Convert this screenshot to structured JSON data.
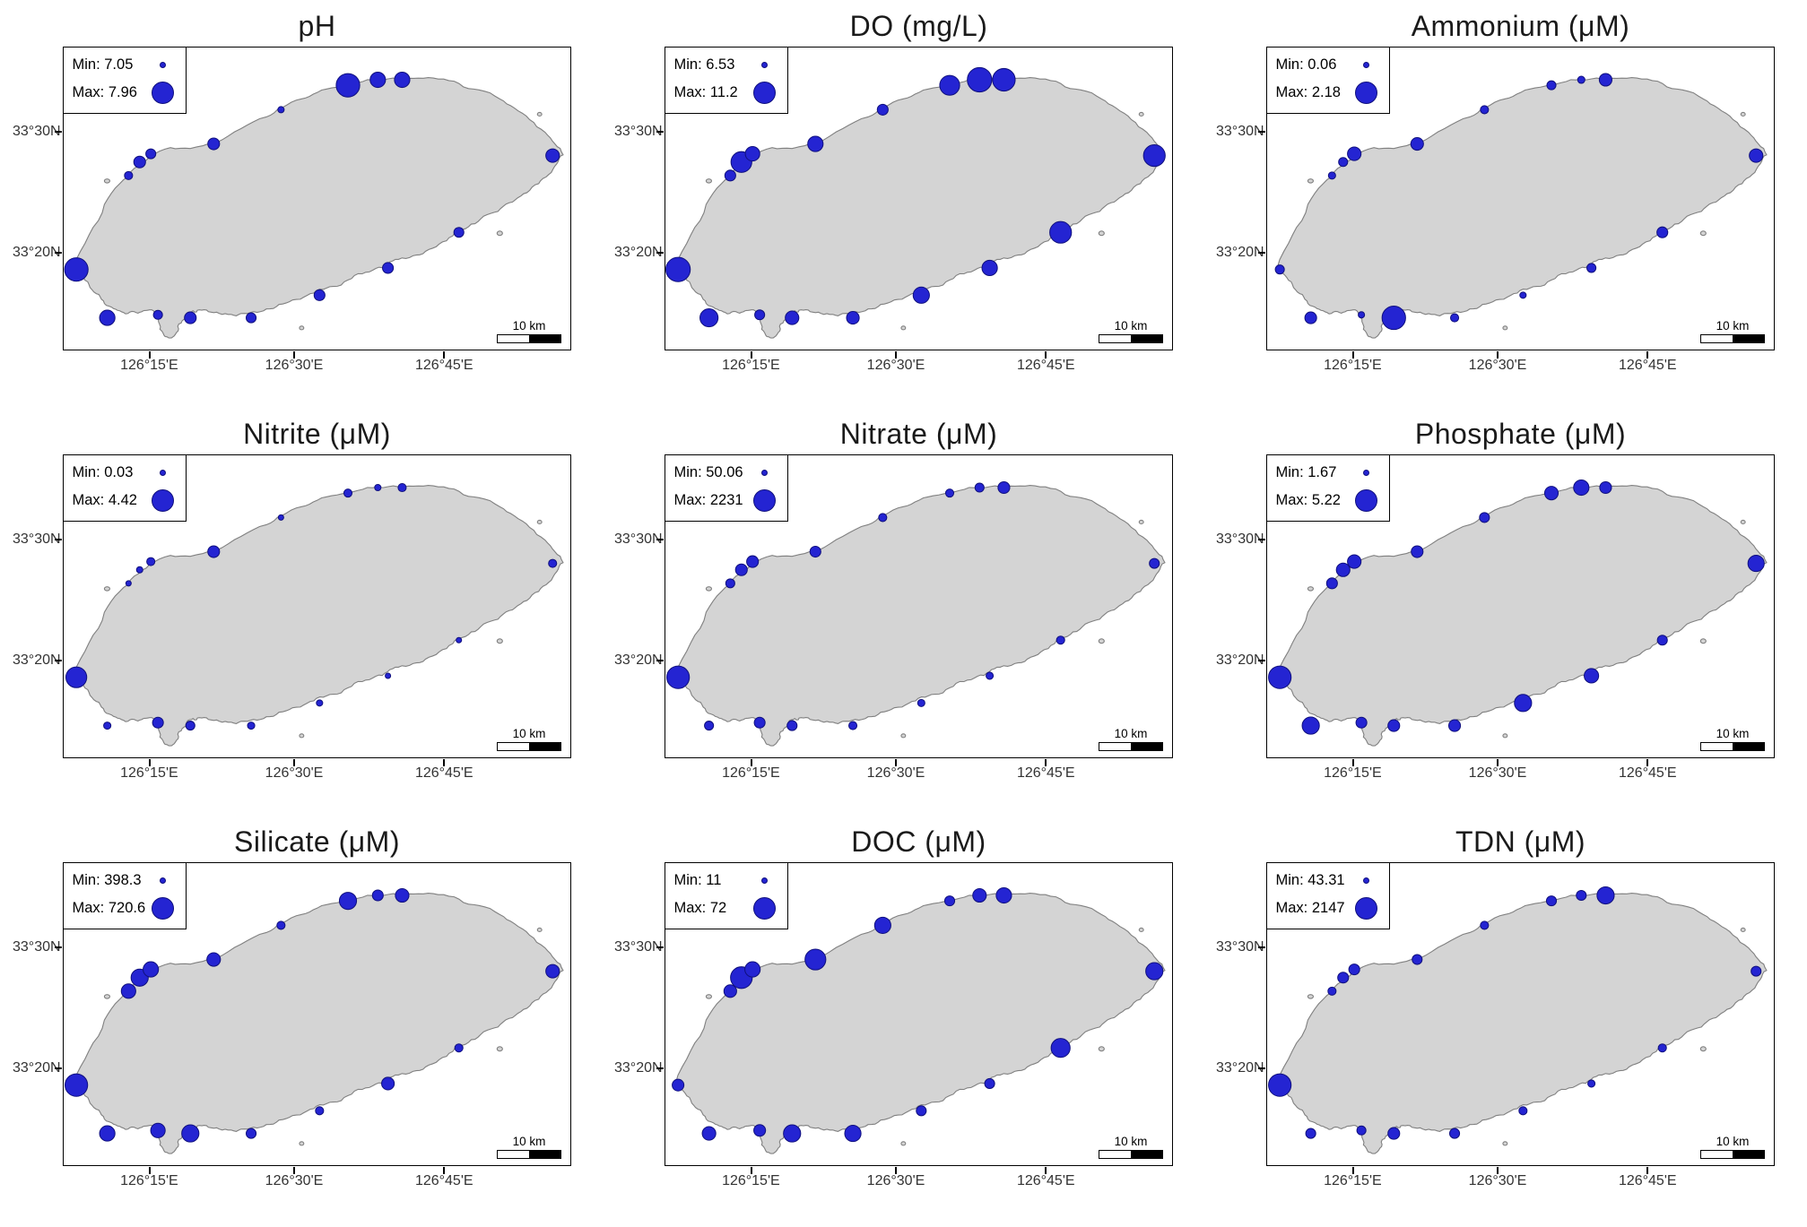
{
  "style": {
    "bubble_fill": "#2424d2",
    "bubble_stroke": "#10107e",
    "island_fill": "#d4d4d4",
    "island_stroke": "#808080",
    "background": "#ffffff"
  },
  "axes": {
    "y_tick_labels": [
      "33°30N",
      "33°20N"
    ],
    "x_tick_labels": [
      "126°15'E",
      "126°30'E",
      "126°45'E"
    ],
    "scale_bar_label": "10 km"
  },
  "legend_prefixes": {
    "min": "Min:",
    "max": "Max:"
  },
  "map": {
    "stations": [
      [
        0.025,
        0.735
      ],
      [
        0.086,
        0.895
      ],
      [
        0.186,
        0.885
      ],
      [
        0.25,
        0.895
      ],
      [
        0.37,
        0.895
      ],
      [
        0.505,
        0.82
      ],
      [
        0.64,
        0.73
      ],
      [
        0.78,
        0.612
      ],
      [
        0.965,
        0.358
      ],
      [
        0.128,
        0.424
      ],
      [
        0.15,
        0.379
      ],
      [
        0.172,
        0.352
      ],
      [
        0.296,
        0.319
      ],
      [
        0.429,
        0.206
      ],
      [
        0.561,
        0.125
      ],
      [
        0.62,
        0.107
      ],
      [
        0.668,
        0.107
      ]
    ]
  },
  "chart_data": [
    {
      "type": "bubble_map",
      "title": "pH",
      "min": 7.05,
      "max": 7.96,
      "legend_min": "Min: 7.05",
      "legend_max": "Max: 7.96",
      "bubble_radii": [
        13,
        8.5,
        5,
        6.5,
        5.5,
        6,
        6,
        5.5,
        7.5,
        4.5,
        6.5,
        5.5,
        6.5,
        3.5,
        13,
        8.5,
        8.5
      ]
    },
    {
      "type": "bubble_map",
      "title": "DO (mg/L)",
      "min": 6.53,
      "max": 11.2,
      "legend_min": "Min: 6.53",
      "legend_max": "Max: 11.2",
      "bubble_radii": [
        13.5,
        10,
        5.5,
        7.5,
        7,
        9,
        8.5,
        12,
        12,
        6,
        11.5,
        8,
        8.5,
        6,
        11,
        13.5,
        12.5
      ]
    },
    {
      "type": "bubble_map",
      "title": "Ammonium (μM)",
      "min": 0.06,
      "max": 2.18,
      "legend_min": "Min: 0.06",
      "legend_max": "Max: 2.18",
      "bubble_radii": [
        5,
        6.5,
        3.5,
        13,
        4.5,
        3.5,
        5,
        6,
        7.5,
        4,
        5,
        7.5,
        7,
        4.5,
        5,
        4,
        7
      ]
    },
    {
      "type": "bubble_map",
      "title": "Nitrite (μM)",
      "min": 0.03,
      "max": 4.42,
      "legend_min": "Min: 0.03",
      "legend_max": "Max: 4.42",
      "bubble_radii": [
        11.5,
        4,
        6,
        5,
        4,
        3.5,
        3,
        3,
        4.5,
        3,
        3.5,
        4.5,
        6.5,
        3,
        4.5,
        3.5,
        4.5
      ]
    },
    {
      "type": "bubble_map",
      "title": "Nitrate (μM)",
      "min": 50.06,
      "max": 2231,
      "legend_min": "Min: 50.06",
      "legend_max": "Max: 2231",
      "bubble_radii": [
        12.5,
        5,
        6,
        5.5,
        4.5,
        4,
        4,
        4.5,
        5.5,
        5,
        6.5,
        6.5,
        6,
        4.5,
        4.5,
        5,
        6.5
      ]
    },
    {
      "type": "bubble_map",
      "title": "Phosphate (μM)",
      "min": 1.67,
      "max": 5.22,
      "legend_min": "Min: 1.67",
      "legend_max": "Max: 5.22",
      "bubble_radii": [
        12.5,
        9.5,
        6,
        6.5,
        6.5,
        9.5,
        8,
        5.5,
        9,
        6,
        7.5,
        7.5,
        6.5,
        5.5,
        7.5,
        8.5,
        6.5
      ]
    },
    {
      "type": "bubble_map",
      "title": "Silicate (μM)",
      "min": 398.3,
      "max": 720.6,
      "legend_min": "Min: 398.3",
      "legend_max": "Max: 720.6",
      "bubble_radii": [
        12.5,
        8.5,
        8,
        9.5,
        5.5,
        4.5,
        7,
        4.5,
        7.5,
        8,
        9.5,
        8.5,
        7.5,
        4.5,
        9.5,
        6,
        7.5
      ]
    },
    {
      "type": "bubble_map",
      "title": "DOC (μM)",
      "min": 11,
      "max": 72,
      "legend_min": "Min: 11",
      "legend_max": "Max: 72",
      "bubble_radii": [
        6.5,
        7.5,
        6.5,
        9.5,
        9,
        5.5,
        5.5,
        10.5,
        9.5,
        7,
        12,
        8.5,
        11.5,
        9,
        5.5,
        7.5,
        8.5
      ]
    },
    {
      "type": "bubble_map",
      "title": "TDN (μM)",
      "min": 43.31,
      "max": 2147,
      "legend_min": "Min: 43.31",
      "legend_max": "Max: 2147",
      "bubble_radii": [
        12.5,
        5.5,
        5,
        6.5,
        5.5,
        4.5,
        4,
        4.5,
        5.5,
        4.5,
        6,
        6,
        5.5,
        4.5,
        5.5,
        5.5,
        9.5
      ]
    }
  ]
}
